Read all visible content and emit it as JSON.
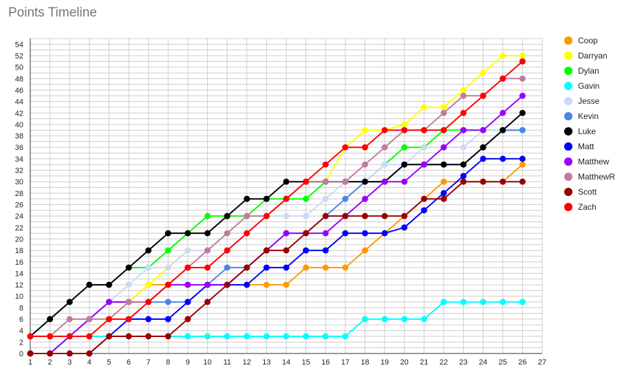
{
  "chart_data": {
    "type": "line",
    "title": "Points Timeline",
    "xlabel": "",
    "ylabel": "",
    "xlim": [
      1,
      27
    ],
    "ylim": [
      0,
      55
    ],
    "x_ticks": [
      1,
      2,
      3,
      4,
      5,
      6,
      7,
      8,
      9,
      10,
      11,
      12,
      13,
      14,
      15,
      16,
      17,
      18,
      19,
      20,
      21,
      22,
      23,
      24,
      25,
      26,
      27
    ],
    "y_ticks": [
      0,
      2,
      4,
      6,
      8,
      10,
      12,
      14,
      16,
      18,
      20,
      22,
      24,
      26,
      28,
      30,
      32,
      34,
      36,
      38,
      40,
      42,
      44,
      46,
      48,
      50,
      52,
      54
    ],
    "grid": true,
    "legend_position": "right",
    "x": [
      1,
      2,
      3,
      4,
      5,
      6,
      7,
      8,
      9,
      10,
      11,
      12,
      13,
      14,
      15,
      16,
      17,
      18,
      19,
      20,
      21,
      22,
      23,
      24,
      25,
      26
    ],
    "series": [
      {
        "name": "Coop",
        "color": "#ff9900",
        "values": [
          0,
          0,
          3,
          6,
          9,
          9,
          12,
          12,
          12,
          12,
          12,
          12,
          12,
          12,
          15,
          15,
          15,
          18,
          21,
          24,
          27,
          30,
          30,
          30,
          30,
          33
        ]
      },
      {
        "name": "Darryan",
        "color": "#ffff00",
        "values": [
          3,
          3,
          3,
          3,
          6,
          9,
          12,
          15,
          18,
          18,
          21,
          24,
          24,
          27,
          30,
          30,
          36,
          39,
          39,
          40,
          43,
          43,
          46,
          49,
          52,
          52
        ]
      },
      {
        "name": "Dylan",
        "color": "#00ff00",
        "values": [
          3,
          6,
          9,
          12,
          12,
          15,
          15,
          18,
          21,
          24,
          24,
          24,
          27,
          27,
          27,
          30,
          30,
          30,
          33,
          36,
          36,
          39,
          39,
          39,
          39,
          39
        ]
      },
      {
        "name": "Gavin",
        "color": "#00ffff",
        "values": [
          0,
          0,
          3,
          3,
          3,
          3,
          3,
          3,
          3,
          3,
          3,
          3,
          3,
          3,
          3,
          3,
          3,
          6,
          6,
          6,
          6,
          9,
          9,
          9,
          9,
          9
        ]
      },
      {
        "name": "Jesse",
        "color": "#c9daf8",
        "values": [
          3,
          3,
          3,
          6,
          9,
          12,
          15,
          15,
          18,
          18,
          21,
          21,
          24,
          24,
          24,
          27,
          30,
          30,
          33,
          33,
          36,
          36,
          36,
          39,
          39,
          39
        ]
      },
      {
        "name": "Kevin",
        "color": "#4a86e8",
        "values": [
          0,
          0,
          3,
          6,
          9,
          9,
          9,
          9,
          9,
          12,
          15,
          15,
          18,
          21,
          21,
          24,
          27,
          30,
          30,
          33,
          33,
          33,
          33,
          36,
          39,
          39
        ]
      },
      {
        "name": "Luke",
        "color": "#000000",
        "values": [
          3,
          6,
          9,
          12,
          12,
          15,
          18,
          21,
          21,
          21,
          24,
          27,
          27,
          30,
          30,
          30,
          30,
          30,
          30,
          33,
          33,
          33,
          33,
          36,
          39,
          42
        ]
      },
      {
        "name": "Matt",
        "color": "#0000ff",
        "values": [
          0,
          0,
          0,
          0,
          3,
          6,
          6,
          6,
          9,
          12,
          12,
          12,
          15,
          15,
          18,
          18,
          21,
          21,
          21,
          22,
          25,
          28,
          31,
          34,
          34,
          34
        ]
      },
      {
        "name": "Matthew",
        "color": "#9900ff",
        "values": [
          0,
          0,
          3,
          6,
          9,
          9,
          9,
          12,
          12,
          12,
          12,
          15,
          18,
          21,
          21,
          21,
          24,
          27,
          30,
          30,
          33,
          36,
          39,
          39,
          42,
          45
        ]
      },
      {
        "name": "MatthewR",
        "color": "#c27ba0",
        "values": [
          3,
          3,
          6,
          6,
          6,
          9,
          9,
          12,
          15,
          18,
          21,
          24,
          24,
          27,
          30,
          30,
          30,
          33,
          36,
          39,
          39,
          42,
          45,
          45,
          48,
          48
        ]
      },
      {
        "name": "Scott",
        "color": "#990000",
        "values": [
          0,
          0,
          0,
          0,
          3,
          3,
          3,
          3,
          6,
          9,
          12,
          15,
          18,
          18,
          21,
          24,
          24,
          24,
          24,
          24,
          27,
          27,
          30,
          30,
          30,
          30
        ]
      },
      {
        "name": "Zach",
        "color": "#ff0000",
        "values": [
          3,
          3,
          3,
          3,
          6,
          6,
          9,
          12,
          15,
          15,
          18,
          21,
          24,
          27,
          30,
          33,
          36,
          36,
          39,
          39,
          39,
          39,
          42,
          45,
          48,
          51
        ]
      }
    ]
  }
}
